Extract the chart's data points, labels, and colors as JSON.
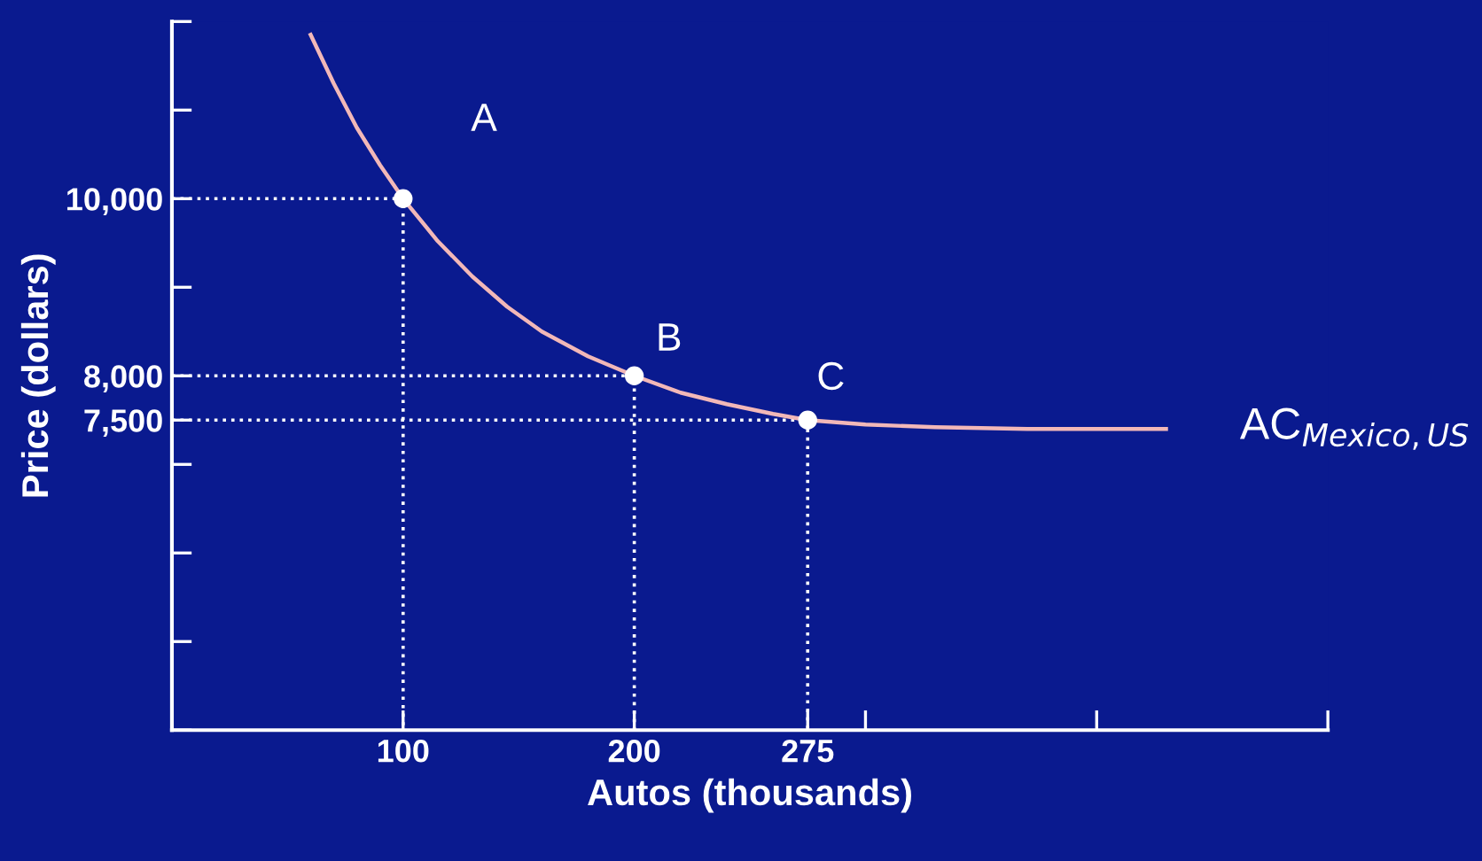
{
  "chart_data": {
    "type": "line",
    "xlabel": "Autos (thousands)",
    "ylabel": "Price (dollars)",
    "xlim": [
      0,
      500
    ],
    "ylim": [
      4000,
      12000
    ],
    "xticks": [
      100,
      200,
      275,
      {
        "value": 300,
        "label": null
      },
      {
        "value": 400,
        "label": null
      },
      {
        "value": 500,
        "label": null
      }
    ],
    "yticks": [
      {
        "value": 4000,
        "label": null
      },
      {
        "value": 5000,
        "label": null
      },
      {
        "value": 6000,
        "label": null
      },
      {
        "value": 7000,
        "label": null
      },
      {
        "value": 7500,
        "label": "7,500"
      },
      {
        "value": 8000,
        "label": "8,000"
      },
      {
        "value": 9000,
        "label": null
      },
      {
        "value": 10000,
        "label": "10,000"
      },
      {
        "value": 11000,
        "label": null
      },
      {
        "value": 12000,
        "label": null
      }
    ],
    "grid": false,
    "legend": false,
    "series": [
      {
        "color": "#f2b8b8",
        "line_style": "solid",
        "marker": "none",
        "x": [
          60,
          70,
          80,
          90,
          100,
          115,
          130,
          145,
          160,
          180,
          200,
          220,
          240,
          260,
          275,
          300,
          330,
          370,
          430
        ],
        "values": [
          11850,
          11300,
          10800,
          10380,
          10000,
          9520,
          9120,
          8780,
          8500,
          8220,
          8000,
          7810,
          7680,
          7570,
          7500,
          7450,
          7420,
          7400,
          7400
        ]
      },
      {
        "color": "#ffffff",
        "line_style": "dotted",
        "marker": "none",
        "x": [
          0,
          100,
          100
        ],
        "values": [
          10000,
          10000,
          4000
        ]
      },
      {
        "color": "#ffffff",
        "line_style": "dotted",
        "marker": "none",
        "x": [
          0,
          200,
          200
        ],
        "values": [
          8000,
          8000,
          4000
        ]
      },
      {
        "color": "#ffffff",
        "line_style": "dotted",
        "marker": "none",
        "x": [
          0,
          275,
          275
        ],
        "values": [
          7500,
          7500,
          4000
        ]
      },
      {
        "type": "scatter",
        "color": "#ffffff",
        "marker": "circle",
        "x": [
          100,
          200,
          275
        ],
        "values": [
          10000,
          8000,
          7500
        ]
      }
    ],
    "annotations": [
      "A",
      "B",
      "C",
      {
        "text": "AC$_{Mexico,US}$",
        "x": 430,
        "y": 7400
      }
    ]
  }
}
